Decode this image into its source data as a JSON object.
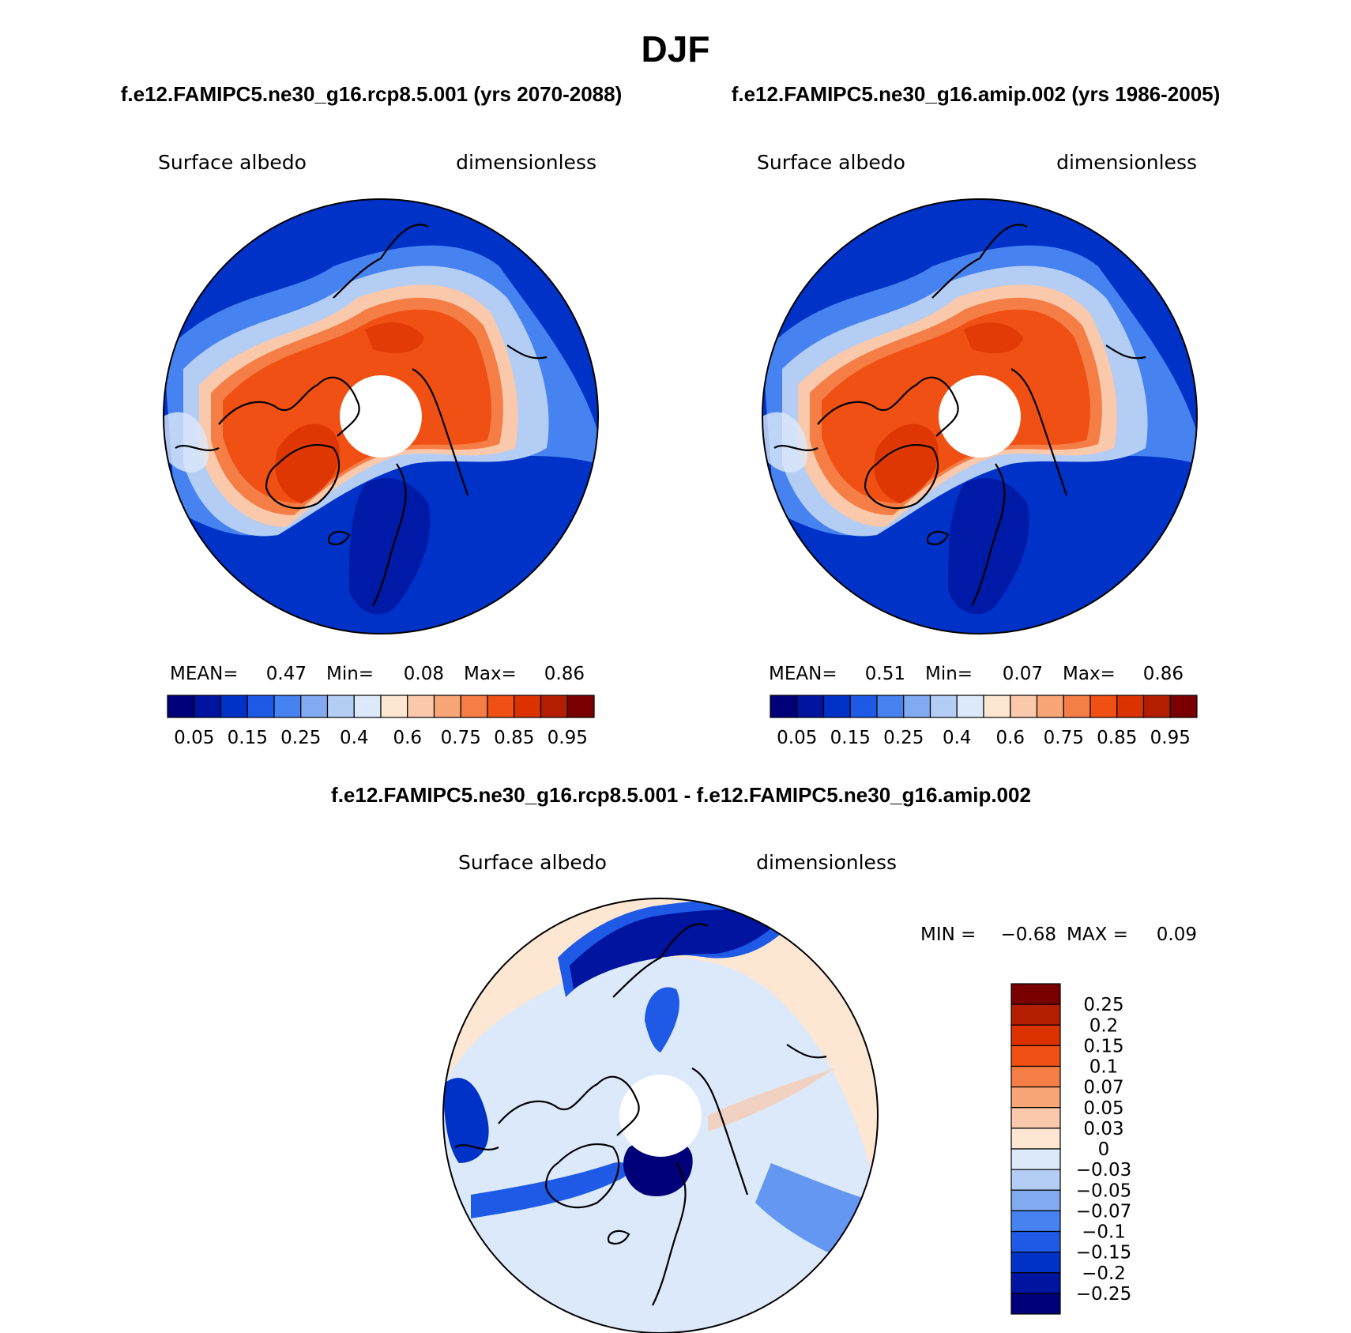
{
  "main_title": "DJF",
  "panel_top_left": {
    "header": "f.e12.FAMIPC5.ne30_g16.rcp8.5.001 (yrs 2070-2088)",
    "variable": "Surface albedo",
    "units": "dimensionless",
    "stats": {
      "mean_label": "MEAN=",
      "mean": "0.47",
      "min_label": "Min=",
      "min": "0.08",
      "max_label": "Max=",
      "max": "0.86"
    }
  },
  "panel_top_right": {
    "header": "f.e12.FAMIPC5.ne30_g16.amip.002 (yrs 1986-2005)",
    "variable": "Surface albedo",
    "units": "dimensionless",
    "stats": {
      "mean_label": "MEAN=",
      "mean": "0.51",
      "min_label": "Min=",
      "min": "0.07",
      "max_label": "Max=",
      "max": "0.86"
    }
  },
  "panel_diff": {
    "header": "f.e12.FAMIPC5.ne30_g16.rcp8.5.001 - f.e12.FAMIPC5.ne30_g16.amip.002",
    "variable": "Surface albedo",
    "units": "dimensionless",
    "minmax": {
      "min_label": "MIN =",
      "min": "−0.68",
      "max_label": "MAX =",
      "max": "0.09"
    }
  },
  "abs_colorbar": {
    "colors": [
      "#000078",
      "#0014a0",
      "#0032c8",
      "#1e5ae6",
      "#4682f0",
      "#82aaf0",
      "#b4cdf5",
      "#dce9fa",
      "#fde6d2",
      "#fac8aa",
      "#f8a578",
      "#f57d46",
      "#f05014",
      "#dc3200",
      "#b41e00",
      "#780000"
    ],
    "labels": [
      "0.05",
      "0.15",
      "0.25",
      "0.4",
      "0.6",
      "0.75",
      "0.85",
      "0.95"
    ]
  },
  "diff_colorbar": {
    "colors": [
      "#000078",
      "#0014a0",
      "#0032c8",
      "#1e5ae6",
      "#4682f0",
      "#82aaf0",
      "#b4cdf5",
      "#dce9fa",
      "#fde6d2",
      "#fac8aa",
      "#f8a578",
      "#f57d46",
      "#f05014",
      "#dc3200",
      "#b41e00",
      "#780000"
    ],
    "labels": [
      "−0.25",
      "−0.2",
      "−0.15",
      "−0.1",
      "−0.07",
      "−0.05",
      "−0.03",
      "0",
      "0.03",
      "0.05",
      "0.07",
      "0.1",
      "0.15",
      "0.2",
      "0.25"
    ]
  }
}
